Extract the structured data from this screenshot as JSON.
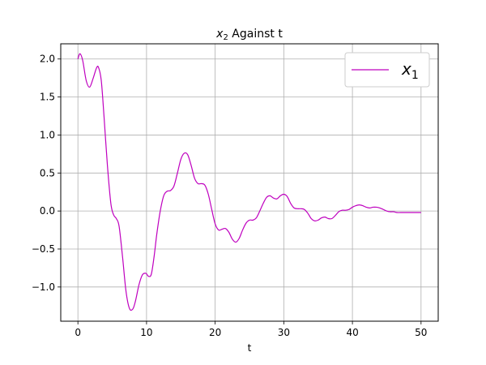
{
  "chart_data": {
    "type": "line",
    "title": "x",
    "title_subscript": "2",
    "title_suffix": " Against t",
    "xlabel": "t",
    "ylabel": "",
    "xlim": [
      -2.5,
      52.5
    ],
    "ylim": [
      -1.45,
      2.2
    ],
    "xticks": [
      0,
      10,
      20,
      30,
      40,
      50
    ],
    "xtick_labels": [
      "0",
      "10",
      "20",
      "30",
      "40",
      "50"
    ],
    "yticks": [
      -1.0,
      -0.5,
      0.0,
      0.5,
      1.0,
      1.5,
      2.0
    ],
    "ytick_labels": [
      "−1.0",
      "−0.5",
      "0.0",
      "0.5",
      "1.0",
      "1.5",
      "2.0"
    ],
    "grid": true,
    "legend_position": "upper-right",
    "series": [
      {
        "name": "x",
        "name_subscript": "1",
        "color": "#bf00bf",
        "x": [
          0,
          0.3,
          0.7,
          1.2,
          1.7,
          2.2,
          2.7,
          3.0,
          3.4,
          3.8,
          4.3,
          4.8,
          5.2,
          5.6,
          6.0,
          6.5,
          7.0,
          7.5,
          8.0,
          8.4,
          8.9,
          9.4,
          9.9,
          10.3,
          10.7,
          11.1,
          11.5,
          12.0,
          12.5,
          13.0,
          13.5,
          14.0,
          14.5,
          15.0,
          15.5,
          16.0,
          16.5,
          17.0,
          17.5,
          18.0,
          18.5,
          19.0,
          19.5,
          20.0,
          20.5,
          21.0,
          21.5,
          22.0,
          22.5,
          23.0,
          23.5,
          24.0,
          24.5,
          25.0,
          25.5,
          26.0,
          26.5,
          27.0,
          27.5,
          28.0,
          28.5,
          29.0,
          29.5,
          30.0,
          30.5,
          31.0,
          31.5,
          32.0,
          32.5,
          33.0,
          33.5,
          34.0,
          34.5,
          35.0,
          35.5,
          36.0,
          36.5,
          37.0,
          37.5,
          38.0,
          38.5,
          39.0,
          39.5,
          40.0,
          40.5,
          41.0,
          41.5,
          42.0,
          42.5,
          43.0,
          43.5,
          44.0,
          44.5,
          45.0,
          45.5,
          46.0,
          46.5,
          47.0,
          47.5,
          48.0,
          48.5,
          49.0,
          49.5,
          50.0
        ],
        "y": [
          2.0,
          2.07,
          1.98,
          1.72,
          1.63,
          1.74,
          1.88,
          1.89,
          1.72,
          1.25,
          0.6,
          0.1,
          -0.05,
          -0.1,
          -0.2,
          -0.6,
          -1.05,
          -1.28,
          -1.29,
          -1.18,
          -0.97,
          -0.84,
          -0.82,
          -0.86,
          -0.83,
          -0.6,
          -0.3,
          0.0,
          0.2,
          0.26,
          0.27,
          0.33,
          0.5,
          0.68,
          0.76,
          0.74,
          0.6,
          0.43,
          0.36,
          0.36,
          0.34,
          0.22,
          0.02,
          -0.17,
          -0.25,
          -0.24,
          -0.23,
          -0.28,
          -0.37,
          -0.41,
          -0.36,
          -0.25,
          -0.16,
          -0.12,
          -0.12,
          -0.09,
          0.0,
          0.1,
          0.18,
          0.2,
          0.17,
          0.16,
          0.2,
          0.22,
          0.19,
          0.1,
          0.04,
          0.03,
          0.03,
          0.02,
          -0.03,
          -0.1,
          -0.13,
          -0.12,
          -0.09,
          -0.08,
          -0.1,
          -0.1,
          -0.06,
          -0.01,
          0.01,
          0.01,
          0.02,
          0.05,
          0.07,
          0.08,
          0.07,
          0.05,
          0.04,
          0.05,
          0.05,
          0.04,
          0.02,
          0.0,
          -0.01,
          -0.01,
          -0.02,
          -0.02,
          -0.02,
          -0.02,
          -0.02,
          -0.02,
          -0.02,
          -0.02
        ]
      }
    ]
  }
}
